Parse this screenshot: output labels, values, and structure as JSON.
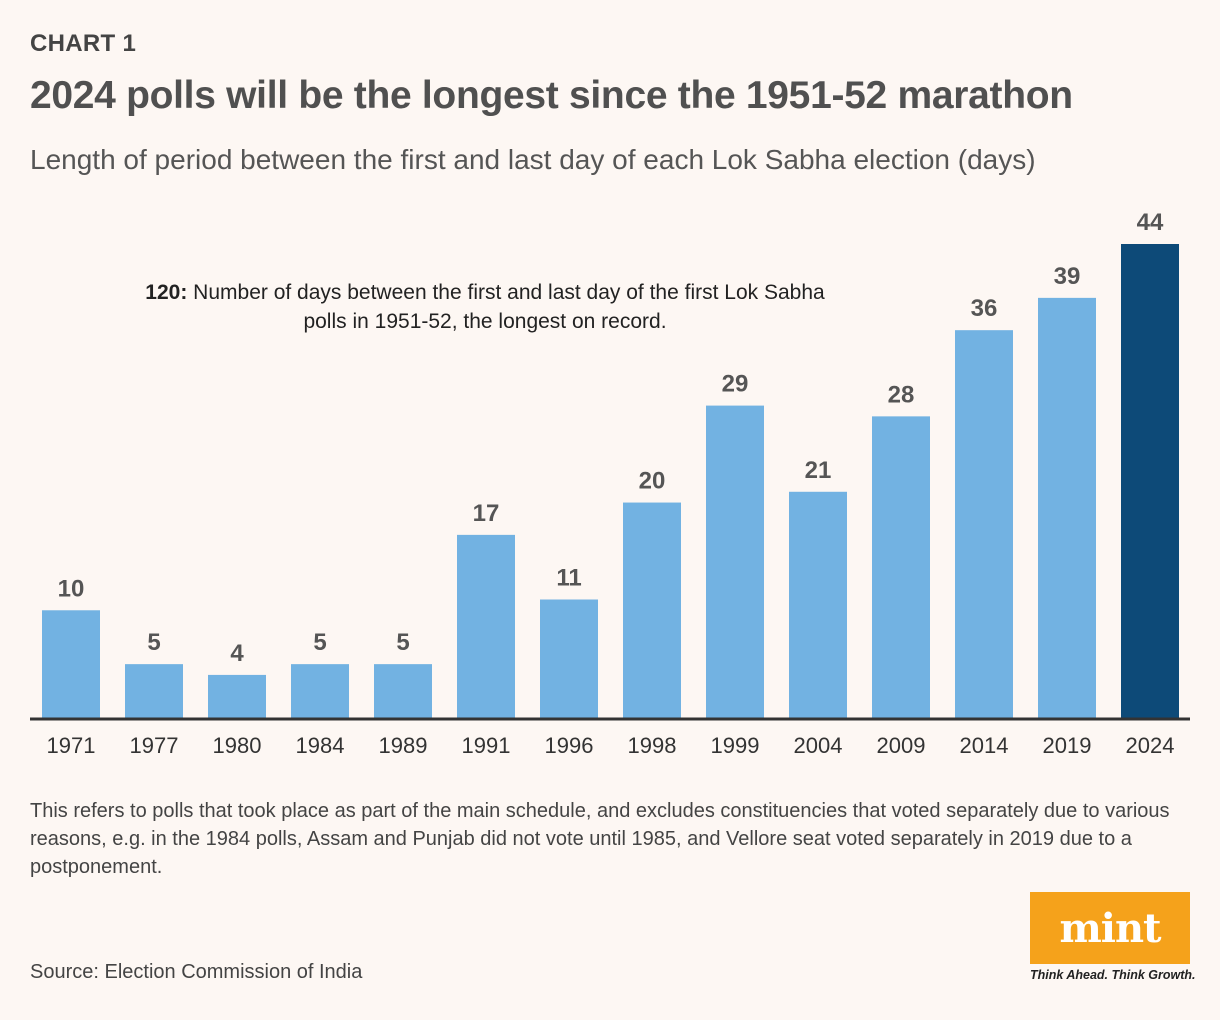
{
  "header": {
    "kicker": "CHART 1",
    "title": "2024 polls will be the longest since the 1951-52 marathon",
    "subtitle": "Length of period between the first and last day of each Lok Sabha election (days)"
  },
  "annotation": {
    "value": "120:",
    "text": "Number of days between the first and last day of the first Lok Sabha polls in 1951-52, the longest on record."
  },
  "footnote": "This refers to polls that took place as part of the main schedule, and excludes constituencies that voted separately due to various reasons, e.g. in the 1984 polls, Assam and Punjab did not vote until 1985, and Vellore seat voted separately in 2019 due to a postponement.",
  "source": "Source: Election Commission of India",
  "logo": {
    "text": "mint",
    "tagline": "Think Ahead. Think Growth."
  },
  "colors": {
    "bar": "#72b2e2",
    "highlight_bar": "#0d4a78",
    "value_label": "#555555",
    "axis": "#333333",
    "logo_bg": "#f5a21b"
  },
  "chart_data": {
    "type": "bar",
    "title": "2024 polls will be the longest since the 1951-52 marathon",
    "xlabel": "",
    "ylabel": "days",
    "categories": [
      "1971",
      "1977",
      "1980",
      "1984",
      "1989",
      "1991",
      "1996",
      "1998",
      "1999",
      "2004",
      "2009",
      "2014",
      "2019",
      "2024"
    ],
    "values": [
      10,
      5,
      4,
      5,
      5,
      17,
      11,
      20,
      29,
      21,
      28,
      36,
      39,
      44
    ],
    "highlight": "2024",
    "ylim": [
      0,
      44
    ],
    "grid": false
  }
}
